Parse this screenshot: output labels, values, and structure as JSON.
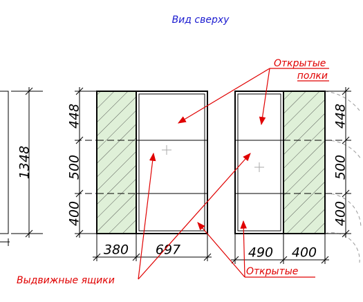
{
  "view_title": "Вид сверху",
  "annotations": {
    "open_shelves": [
      "Открытые",
      "полки"
    ],
    "open": "Открытые",
    "drawers": "Выдвижные ящики"
  },
  "left_panel": {
    "height": 1348
  },
  "middle_cabinet": {
    "rows": [
      448,
      500,
      400
    ],
    "widths": [
      380,
      697
    ]
  },
  "right_cabinet": {
    "rows": [
      448,
      500,
      400
    ],
    "widths": [
      490,
      400
    ]
  }
}
